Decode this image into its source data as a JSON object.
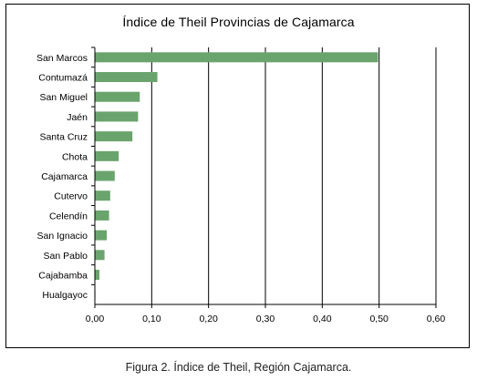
{
  "chart_data": {
    "type": "bar",
    "orientation": "horizontal",
    "title": "Índice de Theil Provincias de Cajamarca",
    "categories": [
      "San Marcos",
      "Contumazá",
      "San Miguel",
      "Jaén",
      "Santa Cruz",
      "Chota",
      "Cajamarca",
      "Cutervo",
      "Celendín",
      "San Ignacio",
      "San Pablo",
      "Cajabamba",
      "Hualgayoc"
    ],
    "values": [
      0.498,
      0.11,
      0.079,
      0.076,
      0.066,
      0.042,
      0.035,
      0.027,
      0.025,
      0.021,
      0.017,
      0.008,
      0.001
    ],
    "xlim": [
      0,
      0.6
    ],
    "xticks": [
      "0,00",
      "0,10",
      "0,20",
      "0,30",
      "0,40",
      "0,50",
      "0,60"
    ],
    "xtick_values": [
      0,
      0.1,
      0.2,
      0.3,
      0.4,
      0.5,
      0.6
    ],
    "grid": "vertical",
    "bar_color": "#6aa46d"
  },
  "caption": "Figura 2. Índice de Theil, Región Cajamarca."
}
